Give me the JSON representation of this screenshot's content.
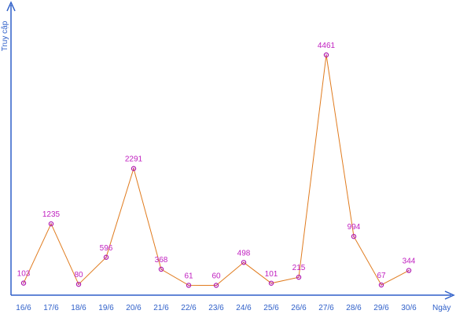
{
  "chart_data": {
    "type": "line",
    "xlabel": "Ngày",
    "ylabel": "Truy cập",
    "categories": [
      "16/6",
      "17/6",
      "18/6",
      "19/6",
      "20/6",
      "21/6",
      "22/6",
      "23/6",
      "24/6",
      "25/6",
      "26/6",
      "27/6",
      "28/6",
      "29/6",
      "30/6"
    ],
    "series": [
      {
        "values": [
          103,
          1235,
          80,
          596,
          2291,
          368,
          61,
          60,
          498,
          101,
          215,
          4461,
          994,
          67,
          344
        ]
      }
    ],
    "ylim": [
      0,
      4500
    ],
    "grid": false,
    "legend": "none",
    "colors": {
      "axis": "#2e5fc9",
      "line": "#e07b1e",
      "marker": "#b01ab0",
      "data_label": "#c020c0",
      "tick_label": "#2e5fc9"
    }
  }
}
